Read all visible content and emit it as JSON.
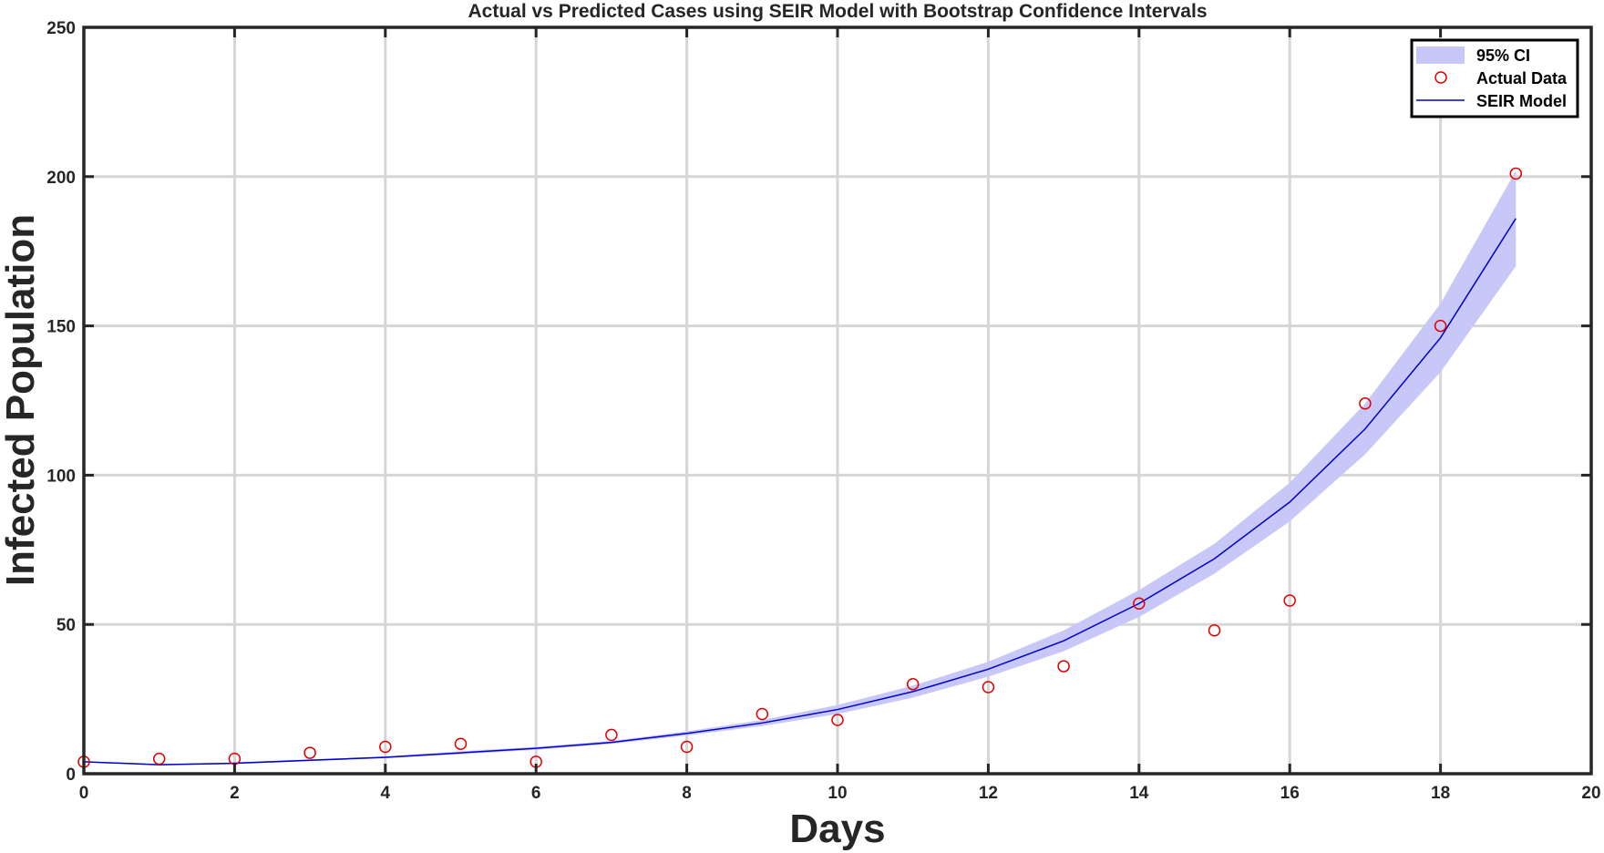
{
  "chart_data": {
    "type": "line",
    "title": "Actual vs Predicted Cases using SEIR Model with Bootstrap Confidence Intervals",
    "xlabel": "Days",
    "ylabel": "Infected Population",
    "xlim": [
      0,
      20
    ],
    "ylim": [
      0,
      250
    ],
    "xticks": [
      0,
      2,
      4,
      6,
      8,
      10,
      12,
      14,
      16,
      18,
      20
    ],
    "yticks": [
      0,
      50,
      100,
      150,
      200,
      250
    ],
    "grid": true,
    "legend_position": "top-right",
    "legend": [
      "95% CI",
      "Actual Data",
      "SEIR Model"
    ],
    "series": [
      {
        "name": "SEIR Model",
        "kind": "line",
        "color": "#0000cc",
        "x": [
          0,
          1,
          2,
          3,
          4,
          5,
          6,
          7,
          8,
          9,
          10,
          11,
          12,
          13,
          14,
          15,
          16,
          17,
          18,
          19
        ],
        "y": [
          4,
          3,
          3.5,
          4.5,
          5.5,
          7,
          8.5,
          10.5,
          13.5,
          17,
          21.5,
          27.5,
          35,
          44.5,
          57,
          72,
          91,
          115.5,
          146,
          186
        ]
      },
      {
        "name": "Actual Data",
        "kind": "scatter",
        "color": "#e00000",
        "x": [
          0,
          1,
          2,
          3,
          4,
          5,
          6,
          7,
          8,
          9,
          10,
          11,
          12,
          13,
          14,
          15,
          16,
          17,
          18,
          19
        ],
        "y": [
          4,
          5,
          5,
          7,
          9,
          10,
          4,
          13,
          9,
          20,
          18,
          30,
          29,
          36,
          57,
          48,
          58,
          124,
          150,
          201
        ]
      },
      {
        "name": "95% CI",
        "kind": "band",
        "color": "#c8c8f8",
        "x": [
          0,
          1,
          2,
          3,
          4,
          5,
          6,
          7,
          8,
          9,
          10,
          11,
          12,
          13,
          14,
          15,
          16,
          17,
          18,
          19
        ],
        "lower": [
          3.8,
          2.8,
          3.2,
          4.2,
          5.2,
          6.5,
          8,
          10,
          12.8,
          16,
          20,
          25.5,
          32.5,
          41,
          52.5,
          67,
          84.5,
          107,
          134.5,
          170
        ],
        "upper": [
          4.2,
          3.2,
          3.8,
          4.8,
          5.8,
          7.5,
          9,
          11,
          14.2,
          18,
          23,
          29.5,
          37.5,
          48,
          61.5,
          77,
          97.5,
          124,
          157.5,
          202
        ]
      }
    ]
  }
}
